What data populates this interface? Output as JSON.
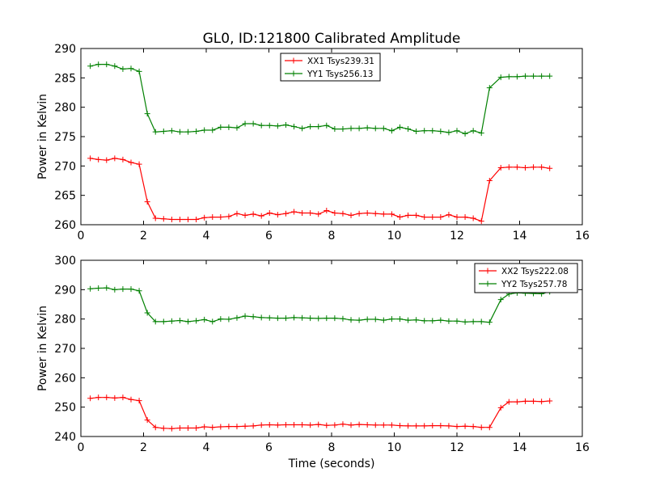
{
  "figure": {
    "title": "GL0, ID:121800 Calibrated Amplitude",
    "xlabel": "Time (seconds)"
  },
  "chart_data": [
    {
      "type": "line",
      "title": "GL0, ID:121800 Calibrated Amplitude",
      "xlabel": "",
      "ylabel": "Power in Kelvin",
      "xlim": [
        0,
        16
      ],
      "ylim": [
        260,
        290
      ],
      "xticks": [
        0,
        2,
        4,
        6,
        8,
        10,
        12,
        14,
        16
      ],
      "yticks": [
        260,
        265,
        270,
        275,
        280,
        285,
        290
      ],
      "grid": false,
      "legend_position": "top-center",
      "x": [
        0.3,
        0.56,
        0.82,
        1.08,
        1.34,
        1.6,
        1.86,
        2.12,
        2.38,
        2.64,
        2.9,
        3.16,
        3.42,
        3.68,
        3.94,
        4.2,
        4.46,
        4.72,
        4.98,
        5.24,
        5.5,
        5.76,
        6.02,
        6.28,
        6.54,
        6.8,
        7.06,
        7.32,
        7.58,
        7.84,
        8.1,
        8.36,
        8.62,
        8.88,
        9.14,
        9.4,
        9.66,
        9.92,
        10.18,
        10.44,
        10.7,
        10.96,
        11.22,
        11.48,
        11.74,
        12.0,
        12.26,
        12.52,
        12.78,
        13.04,
        13.4,
        13.66,
        13.92,
        14.18,
        14.44,
        14.7,
        14.96
      ],
      "series": [
        {
          "name": "XX1 Tsys239.31",
          "color": "#ff0000",
          "values": [
            271.3,
            271.1,
            271.0,
            271.3,
            271.1,
            270.6,
            270.3,
            263.9,
            261.1,
            261.0,
            260.9,
            260.9,
            260.9,
            260.9,
            261.2,
            261.3,
            261.3,
            261.4,
            261.9,
            261.6,
            261.8,
            261.5,
            262.0,
            261.7,
            261.9,
            262.2,
            262.0,
            262.0,
            261.8,
            262.4,
            262.0,
            261.9,
            261.6,
            261.9,
            262.0,
            261.9,
            261.8,
            261.8,
            261.3,
            261.6,
            261.6,
            261.3,
            261.3,
            261.3,
            261.7,
            261.3,
            261.3,
            261.1,
            260.6,
            267.5,
            269.7,
            269.8,
            269.8,
            269.7,
            269.8,
            269.8,
            269.6
          ]
        },
        {
          "name": "YY1 Tsys256.13",
          "color": "#008000",
          "values": [
            287.0,
            287.3,
            287.3,
            287.0,
            286.5,
            286.6,
            286.1,
            278.9,
            275.8,
            275.9,
            276.0,
            275.8,
            275.8,
            275.9,
            276.1,
            276.1,
            276.6,
            276.6,
            276.5,
            277.2,
            277.2,
            276.9,
            276.9,
            276.8,
            277.0,
            276.7,
            276.4,
            276.7,
            276.7,
            276.9,
            276.3,
            276.3,
            276.4,
            276.4,
            276.5,
            276.4,
            276.4,
            276.0,
            276.6,
            276.3,
            275.9,
            276.0,
            276.0,
            275.9,
            275.7,
            276.0,
            275.5,
            276.0,
            275.6,
            283.3,
            285.1,
            285.2,
            285.2,
            285.3,
            285.3,
            285.3,
            285.3
          ]
        }
      ]
    },
    {
      "type": "line",
      "title": "",
      "xlabel": "Time (seconds)",
      "ylabel": "Power in Kelvin",
      "xlim": [
        0,
        16
      ],
      "ylim": [
        240,
        300
      ],
      "xticks": [
        0,
        2,
        4,
        6,
        8,
        10,
        12,
        14,
        16
      ],
      "yticks": [
        240,
        250,
        260,
        270,
        280,
        290,
        300
      ],
      "grid": false,
      "legend_position": "top-right",
      "x": [
        0.3,
        0.56,
        0.82,
        1.08,
        1.34,
        1.6,
        1.86,
        2.12,
        2.38,
        2.64,
        2.9,
        3.16,
        3.42,
        3.68,
        3.94,
        4.2,
        4.46,
        4.72,
        4.98,
        5.24,
        5.5,
        5.76,
        6.02,
        6.28,
        6.54,
        6.8,
        7.06,
        7.32,
        7.58,
        7.84,
        8.1,
        8.36,
        8.62,
        8.88,
        9.14,
        9.4,
        9.66,
        9.92,
        10.18,
        10.44,
        10.7,
        10.96,
        11.22,
        11.48,
        11.74,
        12.0,
        12.26,
        12.52,
        12.78,
        13.04,
        13.4,
        13.66,
        13.92,
        14.18,
        14.44,
        14.7,
        14.96
      ],
      "series": [
        {
          "name": "XX2 Tsys222.08",
          "color": "#ff0000",
          "values": [
            253.0,
            253.3,
            253.3,
            253.1,
            253.3,
            252.6,
            252.2,
            245.6,
            243.1,
            242.8,
            242.7,
            242.9,
            242.9,
            242.9,
            243.3,
            243.1,
            243.3,
            243.4,
            243.4,
            243.5,
            243.6,
            243.9,
            244.0,
            243.9,
            244.0,
            244.0,
            244.0,
            243.9,
            244.1,
            243.8,
            243.9,
            244.2,
            243.9,
            244.1,
            244.0,
            243.9,
            243.9,
            243.9,
            243.7,
            243.6,
            243.6,
            243.6,
            243.7,
            243.7,
            243.6,
            243.4,
            243.5,
            243.4,
            243.1,
            243.1,
            249.8,
            251.8,
            251.8,
            252.0,
            252.0,
            251.9,
            252.1
          ]
        },
        {
          "name": "YY2 Tsys257.78",
          "color": "#008000",
          "values": [
            290.3,
            290.5,
            290.6,
            290.0,
            290.2,
            290.2,
            289.6,
            282.1,
            279.1,
            279.1,
            279.3,
            279.5,
            279.1,
            279.4,
            279.8,
            279.1,
            280.0,
            279.9,
            280.4,
            281.0,
            280.8,
            280.5,
            280.4,
            280.3,
            280.3,
            280.5,
            280.4,
            280.3,
            280.2,
            280.3,
            280.3,
            280.1,
            279.7,
            279.6,
            279.9,
            279.9,
            279.6,
            280.0,
            280.0,
            279.6,
            279.7,
            279.4,
            279.4,
            279.6,
            279.3,
            279.3,
            279.0,
            279.1,
            279.1,
            278.9,
            286.6,
            288.5,
            288.9,
            288.8,
            288.7,
            288.6,
            289.3
          ]
        }
      ]
    }
  ]
}
